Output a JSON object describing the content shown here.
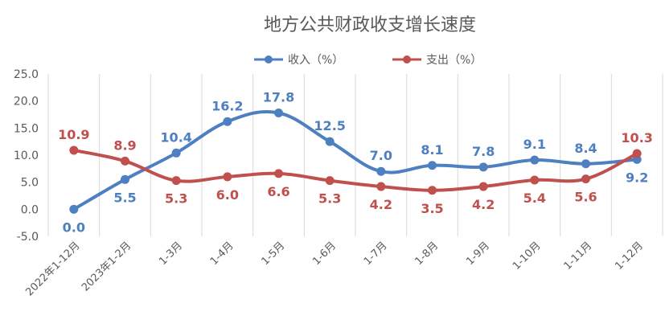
{
  "chart_data": {
    "type": "line",
    "title": "地方公共财政收支增长速度",
    "categories": [
      "2022年1-12月",
      "2023年1-2月",
      "1-3月",
      "1-4月",
      "1-5月",
      "1-6月",
      "1-7月",
      "1-8月",
      "1-9月",
      "1-10月",
      "1-11月",
      "1-12月"
    ],
    "series": [
      {
        "name": "收入（%）",
        "color": "#4e7fc0",
        "values": [
          0.0,
          5.5,
          10.4,
          16.2,
          17.8,
          12.5,
          7.0,
          8.1,
          7.8,
          9.1,
          8.4,
          9.2
        ]
      },
      {
        "name": "支出（%）",
        "color": "#c0504d",
        "values": [
          10.9,
          8.9,
          5.3,
          6.0,
          6.6,
          5.3,
          4.2,
          3.5,
          4.2,
          5.4,
          5.6,
          10.3
        ]
      }
    ],
    "ylim": [
      -5,
      25
    ],
    "yticks": [
      "-5.0",
      "0.0",
      "5.0",
      "10.0",
      "15.0",
      "20.0",
      "25.0"
    ],
    "grid": "vertical",
    "legend": "top",
    "line_style": "smooth"
  }
}
